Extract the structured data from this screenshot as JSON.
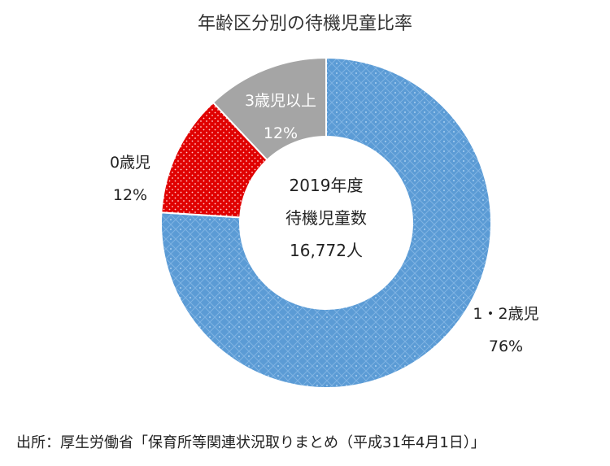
{
  "chart_data": {
    "type": "pie",
    "title": "年齢区分別の待機児童比率",
    "center_label": {
      "line1": "2019年度",
      "line2": "待機児童数",
      "line3": "16,772人"
    },
    "slices": [
      {
        "category": "1・2歳児",
        "value": 76,
        "value_label": "76%",
        "color": "#5B9BD5"
      },
      {
        "category": "0歳児",
        "value": 12,
        "value_label": "12%",
        "color": "#E00000"
      },
      {
        "category": "3歳児以上",
        "value": 12,
        "value_label": "12%",
        "color": "#A5A5A5"
      }
    ],
    "legend": "none"
  },
  "source_note": "出所：厚生労働省「保育所等関連状況取りまとめ（平成31年4月1日）」"
}
